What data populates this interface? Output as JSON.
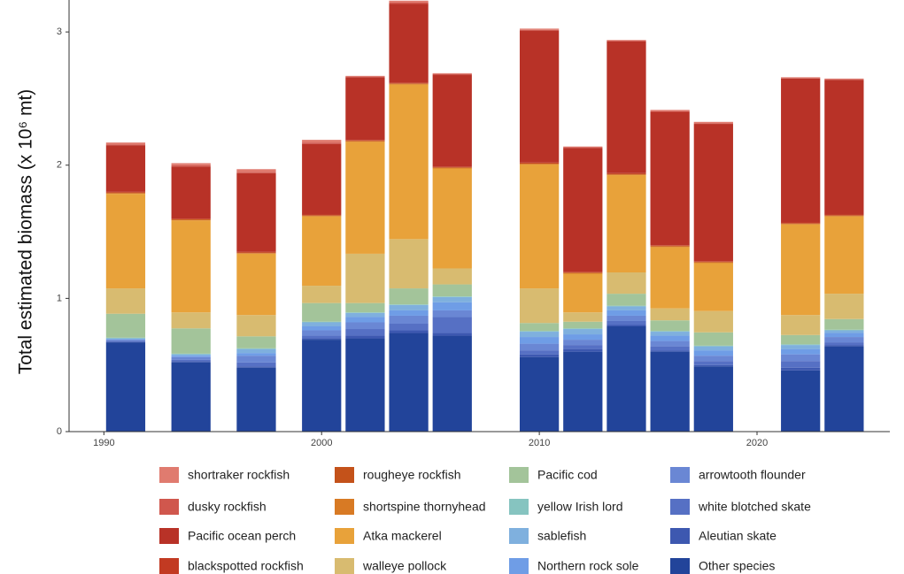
{
  "chart_data": {
    "type": "bar",
    "stacked": true,
    "y_label": "Total estimated biomass (x 10⁶ mt)",
    "x": [
      1991,
      1994,
      1997,
      2000,
      2002,
      2004,
      2006,
      2010,
      2012,
      2014,
      2016,
      2018,
      2022,
      2024
    ],
    "xlim": [
      1988.4,
      2026.1
    ],
    "xticks": [
      1990,
      2000,
      2010,
      2020
    ],
    "ylim": [
      0,
      3.2
    ],
    "yticks": [
      0,
      1,
      2,
      3
    ],
    "grid": false,
    "legend": "bottom",
    "series": [
      {
        "name": "shortraker rockfish",
        "color": "#e07b6f",
        "values": [
          0.015,
          0.015,
          0.02,
          0.02,
          0.005,
          0.015,
          0.005,
          0.01,
          0.005,
          0.005,
          0.01,
          0.01,
          0.005,
          0.005
        ]
      },
      {
        "name": "dusky rockfish",
        "color": "#d0574d",
        "values": [
          0.005,
          0.01,
          0.01,
          0.01,
          0.005,
          0.01,
          0.005,
          0.005,
          0.005,
          0.005,
          0.005,
          0.005,
          0.005,
          0.005
        ]
      },
      {
        "name": "Pacific ocean perch",
        "color": "#b83227",
        "values": [
          0.35,
          0.39,
          0.59,
          0.53,
          0.47,
          0.59,
          0.69,
          0.99,
          0.93,
          0.99,
          1.0,
          1.03,
          1.08,
          1.01
        ]
      },
      {
        "name": "blackspotted rockfish",
        "color": "#c23a22",
        "values": [
          0.005,
          0.005,
          0.005,
          0.005,
          0.005,
          0.005,
          0.005,
          0.005,
          0.005,
          0.005,
          0.005,
          0.005,
          0.005,
          0.005
        ]
      },
      {
        "name": "rougheye rockfish",
        "color": "#c4521a",
        "values": [
          0.005,
          0.005,
          0.005,
          0.005,
          0.005,
          0.005,
          0.005,
          0.005,
          0.005,
          0.005,
          0.005,
          0.005,
          0.005,
          0.005
        ]
      },
      {
        "name": "shortspine thornyhead",
        "color": "#d87a24",
        "values": [
          0.005,
          0.005,
          0.005,
          0.005,
          0.005,
          0.005,
          0.005,
          0.005,
          0.005,
          0.005,
          0.005,
          0.005,
          0.005,
          0.005
        ]
      },
      {
        "name": "Atka mackerel",
        "color": "#e8a23a",
        "values": [
          0.71,
          0.69,
          0.46,
          0.52,
          0.84,
          1.16,
          0.75,
          0.93,
          0.29,
          0.73,
          0.46,
          0.36,
          0.68,
          0.58
        ]
      },
      {
        "name": "walleye pollock",
        "color": "#d8bb70",
        "values": [
          0.19,
          0.12,
          0.16,
          0.13,
          0.37,
          0.37,
          0.12,
          0.26,
          0.07,
          0.16,
          0.09,
          0.16,
          0.15,
          0.19
        ]
      },
      {
        "name": "Pacific cod",
        "color": "#a3c49a",
        "values": [
          0.18,
          0.19,
          0.09,
          0.14,
          0.07,
          0.12,
          0.09,
          0.06,
          0.05,
          0.09,
          0.08,
          0.1,
          0.07,
          0.08
        ]
      },
      {
        "name": "yellow Irish lord",
        "color": "#86c4c0",
        "values": [
          0.005,
          0.005,
          0.005,
          0.005,
          0.005,
          0.005,
          0.005,
          0.005,
          0.005,
          0.005,
          0.005,
          0.005,
          0.005,
          0.005
        ]
      },
      {
        "name": "sablefish",
        "color": "#7fb0de",
        "values": [
          0.005,
          0.01,
          0.03,
          0.03,
          0.03,
          0.04,
          0.04,
          0.04,
          0.04,
          0.03,
          0.03,
          0.03,
          0.03,
          0.02
        ]
      },
      {
        "name": "Northern rock sole",
        "color": "#6f9de6",
        "values": [
          0.005,
          0.01,
          0.02,
          0.03,
          0.04,
          0.04,
          0.06,
          0.05,
          0.04,
          0.04,
          0.04,
          0.04,
          0.04,
          0.03
        ]
      },
      {
        "name": "arrowtooth flounder",
        "color": "#6a87d4",
        "values": [
          0.01,
          0.02,
          0.05,
          0.04,
          0.05,
          0.06,
          0.05,
          0.05,
          0.04,
          0.04,
          0.04,
          0.04,
          0.05,
          0.04
        ]
      },
      {
        "name": "white blotched skate",
        "color": "#5670c4",
        "values": [
          0.005,
          0.01,
          0.03,
          0.02,
          0.05,
          0.05,
          0.12,
          0.03,
          0.03,
          0.03,
          0.03,
          0.03,
          0.05,
          0.02
        ]
      },
      {
        "name": "Aleutian skate",
        "color": "#3d58b0",
        "values": [
          0.005,
          0.01,
          0.01,
          0.01,
          0.02,
          0.02,
          0.02,
          0.02,
          0.02,
          0.01,
          0.01,
          0.01,
          0.02,
          0.01
        ]
      },
      {
        "name": "Other species",
        "color": "#22449a",
        "values": [
          0.67,
          0.52,
          0.48,
          0.69,
          0.7,
          0.74,
          0.72,
          0.56,
          0.6,
          0.79,
          0.6,
          0.49,
          0.46,
          0.64
        ]
      }
    ]
  }
}
